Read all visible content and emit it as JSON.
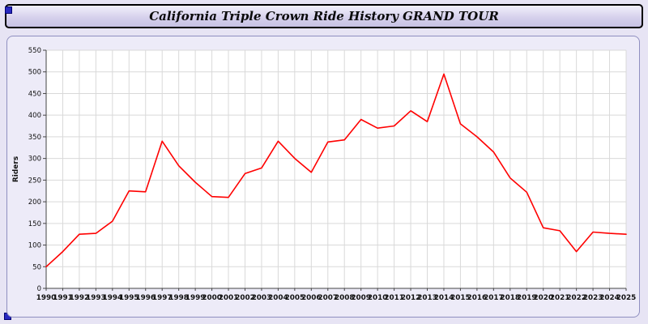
{
  "title": "California Triple Crown Ride History GRAND TOUR",
  "colors": {
    "line": "#ff0000",
    "grid": "#d9d9d9",
    "axis": "#444444",
    "plot_bg": "#ffffff",
    "panel_bg": "#edebf8",
    "label": "#111111",
    "accent_square": "#2929c0"
  },
  "chart_data": {
    "type": "line",
    "title": "California Triple Crown Ride History GRAND TOUR",
    "xlabel": "",
    "ylabel": "Riders",
    "ylim": [
      0,
      550
    ],
    "yticks": [
      0,
      50,
      100,
      150,
      200,
      250,
      300,
      350,
      400,
      450,
      500,
      550
    ],
    "grid": true,
    "legend_position": "none",
    "x": [
      1990,
      1991,
      1992,
      1993,
      1994,
      1995,
      1996,
      1997,
      1998,
      1999,
      2000,
      2001,
      2002,
      2003,
      2004,
      2005,
      2006,
      2007,
      2008,
      2009,
      2010,
      2011,
      2012,
      2013,
      2014,
      2015,
      2016,
      2017,
      2018,
      2019,
      2020,
      2021,
      2022,
      2023,
      2024,
      2025
    ],
    "series": [
      {
        "name": "Riders",
        "color": "#ff0000",
        "values": [
          50,
          85,
          125,
          127,
          155,
          225,
          223,
          340,
          283,
          245,
          212,
          210,
          265,
          278,
          340,
          300,
          268,
          338,
          343,
          390,
          370,
          375,
          410,
          385,
          495,
          380,
          350,
          315,
          255,
          222,
          140,
          133,
          85,
          130,
          127,
          125
        ]
      }
    ]
  }
}
